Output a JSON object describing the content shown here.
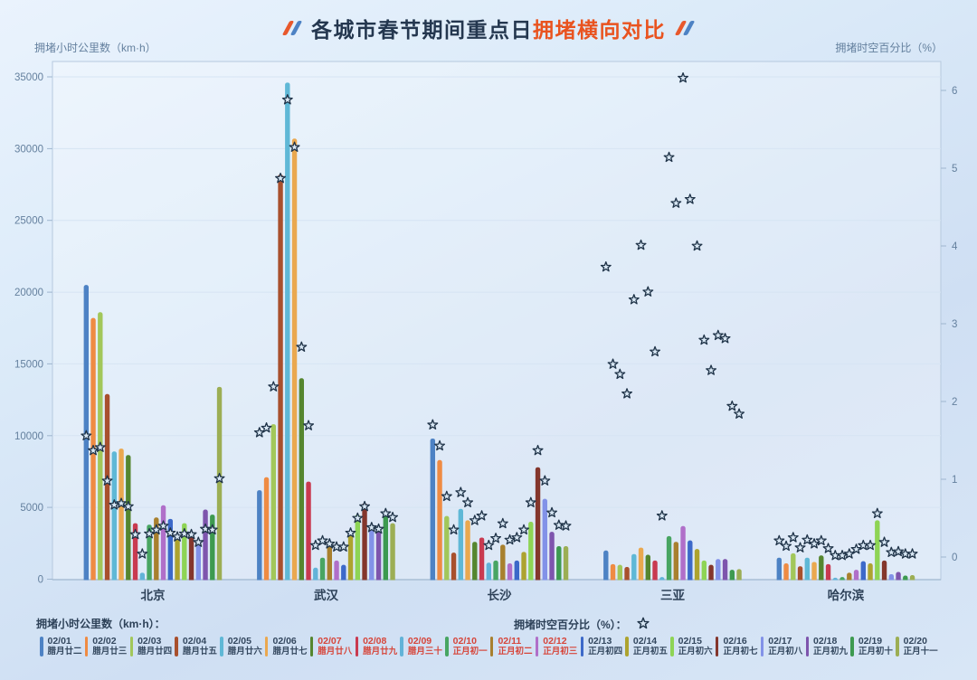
{
  "title": {
    "main": "各城市春节期间重点日",
    "highlight": "拥堵横向对比"
  },
  "axes": {
    "left_label": "拥堵小时公里数（km·h）",
    "right_label": "拥堵时空百分比（%）",
    "left_ticks": [
      0,
      5000,
      10000,
      15000,
      20000,
      25000,
      30000,
      35000
    ],
    "right_ticks": [
      0,
      1,
      2,
      3,
      4,
      5,
      6
    ]
  },
  "legend": {
    "bar_series_title": "拥堵小时公里数（km·h）：",
    "pct_series_title": "拥堵时空百分比（%）："
  },
  "ui": {
    "title_color": "#24374f",
    "title_highlight_color": "#e9531f",
    "axis_text_color": "#64809e",
    "city_text_color": "#2d4158",
    "grid_line_color": "#d6e4f3",
    "axis_line_color": "#9fb6cf",
    "plot_border_color": "#b6c9de",
    "plot_fill_color": "rgba(255,255,255,0.28)",
    "holiday_red": "#d6453a",
    "legend_text_color": "#33475e",
    "star_fill": "#d8e7f4",
    "star_stroke": "#1f3348",
    "slash_blue": "#4d82c4",
    "slash_orange": "#e8582c"
  },
  "chart_data": {
    "type": "bar",
    "subtype": "grouped bars + star scatter, dual y-axis",
    "title": "各城市春节期间重点日拥堵横向对比",
    "categories": [
      "北京",
      "武汉",
      "长沙",
      "三亚",
      "哈尔滨"
    ],
    "bar_axis": {
      "label": "拥堵小时公里数（km·h）",
      "range": [
        0,
        35000
      ]
    },
    "scatter_axis": {
      "label": "拥堵时空百分比（%）",
      "range": [
        0,
        6
      ]
    },
    "legend_position": "bottom",
    "grid": true,
    "series": [
      {
        "date": "02/01",
        "lunar": "腊月廿二",
        "color": "#4d82c4",
        "holiday": false,
        "bar_values": [
          20500,
          6200,
          9800,
          2000,
          1500
        ],
        "pct_values": [
          1.56,
          1.6,
          1.7,
          3.73,
          0.21
        ]
      },
      {
        "date": "02/02",
        "lunar": "腊月廿三",
        "color": "#ef8b43",
        "holiday": false,
        "bar_values": [
          18200,
          7100,
          8300,
          1050,
          1100
        ],
        "pct_values": [
          1.37,
          1.66,
          1.43,
          2.48,
          0.14
        ]
      },
      {
        "date": "02/03",
        "lunar": "腊月廿四",
        "color": "#a2c75a",
        "holiday": false,
        "bar_values": [
          18600,
          10800,
          4400,
          1000,
          1800
        ],
        "pct_values": [
          1.41,
          2.19,
          0.78,
          2.35,
          0.25
        ]
      },
      {
        "date": "02/04",
        "lunar": "腊月廿五",
        "color": "#a8502d",
        "holiday": false,
        "bar_values": [
          12900,
          28200,
          1850,
          850,
          900
        ],
        "pct_values": [
          0.98,
          4.87,
          0.35,
          2.1,
          0.12
        ]
      },
      {
        "date": "02/05",
        "lunar": "腊月廿六",
        "color": "#5fb8d6",
        "holiday": false,
        "bar_values": [
          8900,
          34600,
          4900,
          1750,
          1500
        ],
        "pct_values": [
          0.67,
          5.88,
          0.83,
          3.31,
          0.22
        ]
      },
      {
        "date": "02/06",
        "lunar": "腊月廿七",
        "color": "#eaa84f",
        "holiday": false,
        "bar_values": [
          9100,
          30700,
          4100,
          2200,
          1200
        ],
        "pct_values": [
          0.69,
          5.27,
          0.7,
          4.01,
          0.17
        ]
      },
      {
        "date": "02/07",
        "lunar": "腊月廿八",
        "color": "#55862f",
        "holiday": true,
        "bar_values": [
          8650,
          14000,
          2600,
          1700,
          1650
        ],
        "pct_values": [
          0.65,
          2.7,
          0.47,
          3.41,
          0.21
        ]
      },
      {
        "date": "02/08",
        "lunar": "腊月廿九",
        "color": "#c93a50",
        "holiday": true,
        "bar_values": [
          3900,
          6800,
          2900,
          1300,
          1050
        ],
        "pct_values": [
          0.29,
          1.69,
          0.53,
          2.64,
          0.11
        ]
      },
      {
        "date": "02/09",
        "lunar": "腊月三十",
        "color": "#62b3d8",
        "holiday": true,
        "bar_values": [
          450,
          800,
          1150,
          150,
          100
        ],
        "pct_values": [
          0.04,
          0.15,
          0.15,
          0.53,
          0.02
        ]
      },
      {
        "date": "02/10",
        "lunar": "正月初一",
        "color": "#48a562",
        "holiday": true,
        "bar_values": [
          3800,
          1500,
          1300,
          3000,
          150
        ],
        "pct_values": [
          0.3,
          0.21,
          0.24,
          5.14,
          0.02
        ]
      },
      {
        "date": "02/11",
        "lunar": "正月初二",
        "color": "#a8802e",
        "holiday": true,
        "bar_values": [
          4300,
          2600,
          2400,
          2600,
          450
        ],
        "pct_values": [
          0.35,
          0.17,
          0.43,
          4.55,
          0.04
        ]
      },
      {
        "date": "02/12",
        "lunar": "正月初三",
        "color": "#b06fc9",
        "holiday": true,
        "bar_values": [
          5150,
          1300,
          1100,
          3700,
          650
        ],
        "pct_values": [
          0.4,
          0.13,
          0.22,
          6.16,
          0.1
        ]
      },
      {
        "date": "02/13",
        "lunar": "正月初四",
        "color": "#3c69c9",
        "holiday": false,
        "bar_values": [
          4200,
          1000,
          1300,
          2700,
          1250
        ],
        "pct_values": [
          0.31,
          0.13,
          0.25,
          4.6,
          0.15
        ]
      },
      {
        "date": "02/14",
        "lunar": "正月初五",
        "color": "#ada32f",
        "holiday": false,
        "bar_values": [
          2750,
          3300,
          1900,
          2100,
          1100
        ],
        "pct_values": [
          0.26,
          0.31,
          0.35,
          4.0,
          0.15
        ]
      },
      {
        "date": "02/15",
        "lunar": "正月初六",
        "color": "#8ed455",
        "holiday": false,
        "bar_values": [
          3900,
          4500,
          4000,
          1300,
          4100
        ],
        "pct_values": [
          0.3,
          0.5,
          0.7,
          2.79,
          0.56
        ]
      },
      {
        "date": "02/16",
        "lunar": "正月初七",
        "color": "#84362c",
        "holiday": false,
        "bar_values": [
          3300,
          5300,
          7800,
          1000,
          1300
        ],
        "pct_values": [
          0.29,
          0.65,
          1.37,
          2.4,
          0.19
        ]
      },
      {
        "date": "02/17",
        "lunar": "正月初八",
        "color": "#8292e8",
        "holiday": false,
        "bar_values": [
          2600,
          3800,
          5600,
          1400,
          350
        ],
        "pct_values": [
          0.19,
          0.38,
          0.98,
          2.85,
          0.06
        ]
      },
      {
        "date": "02/18",
        "lunar": "正月初九",
        "color": "#7e55ad",
        "holiday": false,
        "bar_values": [
          4850,
          3500,
          3300,
          1400,
          500
        ],
        "pct_values": [
          0.36,
          0.36,
          0.57,
          2.81,
          0.07
        ]
      },
      {
        "date": "02/19",
        "lunar": "正月初十",
        "color": "#3d9a50",
        "holiday": false,
        "bar_values": [
          4500,
          4600,
          2300,
          650,
          250
        ],
        "pct_values": [
          0.35,
          0.56,
          0.41,
          1.94,
          0.04
        ]
      },
      {
        "date": "02/20",
        "lunar": "正月十一",
        "color": "#9cae54",
        "holiday": false,
        "bar_values": [
          13400,
          3900,
          2300,
          700,
          280
        ],
        "pct_values": [
          1.01,
          0.51,
          0.4,
          1.84,
          0.04
        ]
      }
    ]
  }
}
